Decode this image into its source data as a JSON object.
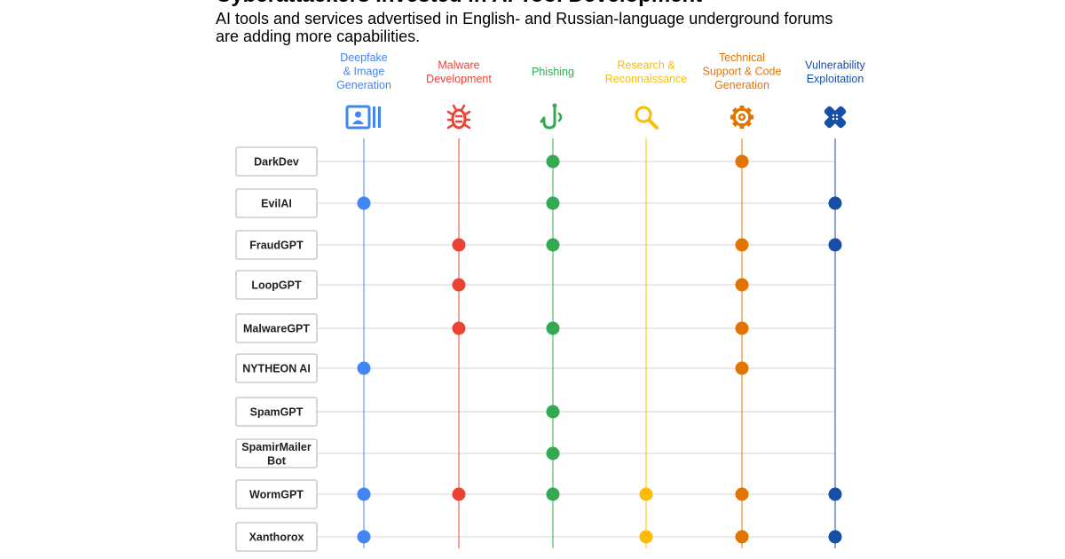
{
  "title": "Cyberattackers Invested in AI Tool Development",
  "subtitle": "AI tools and services advertised in English- and Russian-language underground forums are adding more capabilities.",
  "capabilities": [
    {
      "key": "deepfake",
      "lines": [
        "Deepfake",
        "& Image",
        "Generation"
      ],
      "color": "#4285f4",
      "icon": "id-card-icon"
    },
    {
      "key": "malware",
      "lines": [
        "Malware",
        "Development"
      ],
      "color": "#ea4335",
      "icon": "bug-icon"
    },
    {
      "key": "phishing",
      "lines": [
        "Phishing"
      ],
      "color": "#34a853",
      "icon": "fishhook-icon"
    },
    {
      "key": "research",
      "lines": [
        "Research &",
        "Reconnaissance"
      ],
      "color": "#fbbc04",
      "icon": "magnifier-icon"
    },
    {
      "key": "support",
      "lines": [
        "Technical",
        "Support & Code",
        "Generation"
      ],
      "color": "#e37400",
      "icon": "gear-icon"
    },
    {
      "key": "vuln",
      "lines": [
        "Vulnerability",
        "Exploitation"
      ],
      "color": "#174ea6",
      "icon": "bandage-icon"
    }
  ],
  "tools": [
    {
      "name": [
        "DarkDev"
      ],
      "caps": [
        "phishing",
        "support"
      ]
    },
    {
      "name": [
        "EvilAI"
      ],
      "caps": [
        "deepfake",
        "phishing",
        "vuln"
      ]
    },
    {
      "name": [
        "FraudGPT"
      ],
      "caps": [
        "malware",
        "phishing",
        "support",
        "vuln"
      ]
    },
    {
      "name": [
        "LoopGPT"
      ],
      "caps": [
        "malware",
        "support"
      ]
    },
    {
      "name": [
        "MalwareGPT"
      ],
      "caps": [
        "malware",
        "phishing",
        "support"
      ]
    },
    {
      "name": [
        "NYTHEON AI"
      ],
      "caps": [
        "deepfake",
        "support"
      ]
    },
    {
      "name": [
        "SpamGPT"
      ],
      "caps": [
        "phishing"
      ]
    },
    {
      "name": [
        "SpamirMailer",
        "Bot"
      ],
      "caps": [
        "phishing"
      ]
    },
    {
      "name": [
        "WormGPT"
      ],
      "caps": [
        "deepfake",
        "malware",
        "phishing",
        "research",
        "support",
        "vuln"
      ]
    },
    {
      "name": [
        "Xanthorox"
      ],
      "caps": [
        "deepfake",
        "research",
        "support",
        "vuln"
      ]
    }
  ]
}
